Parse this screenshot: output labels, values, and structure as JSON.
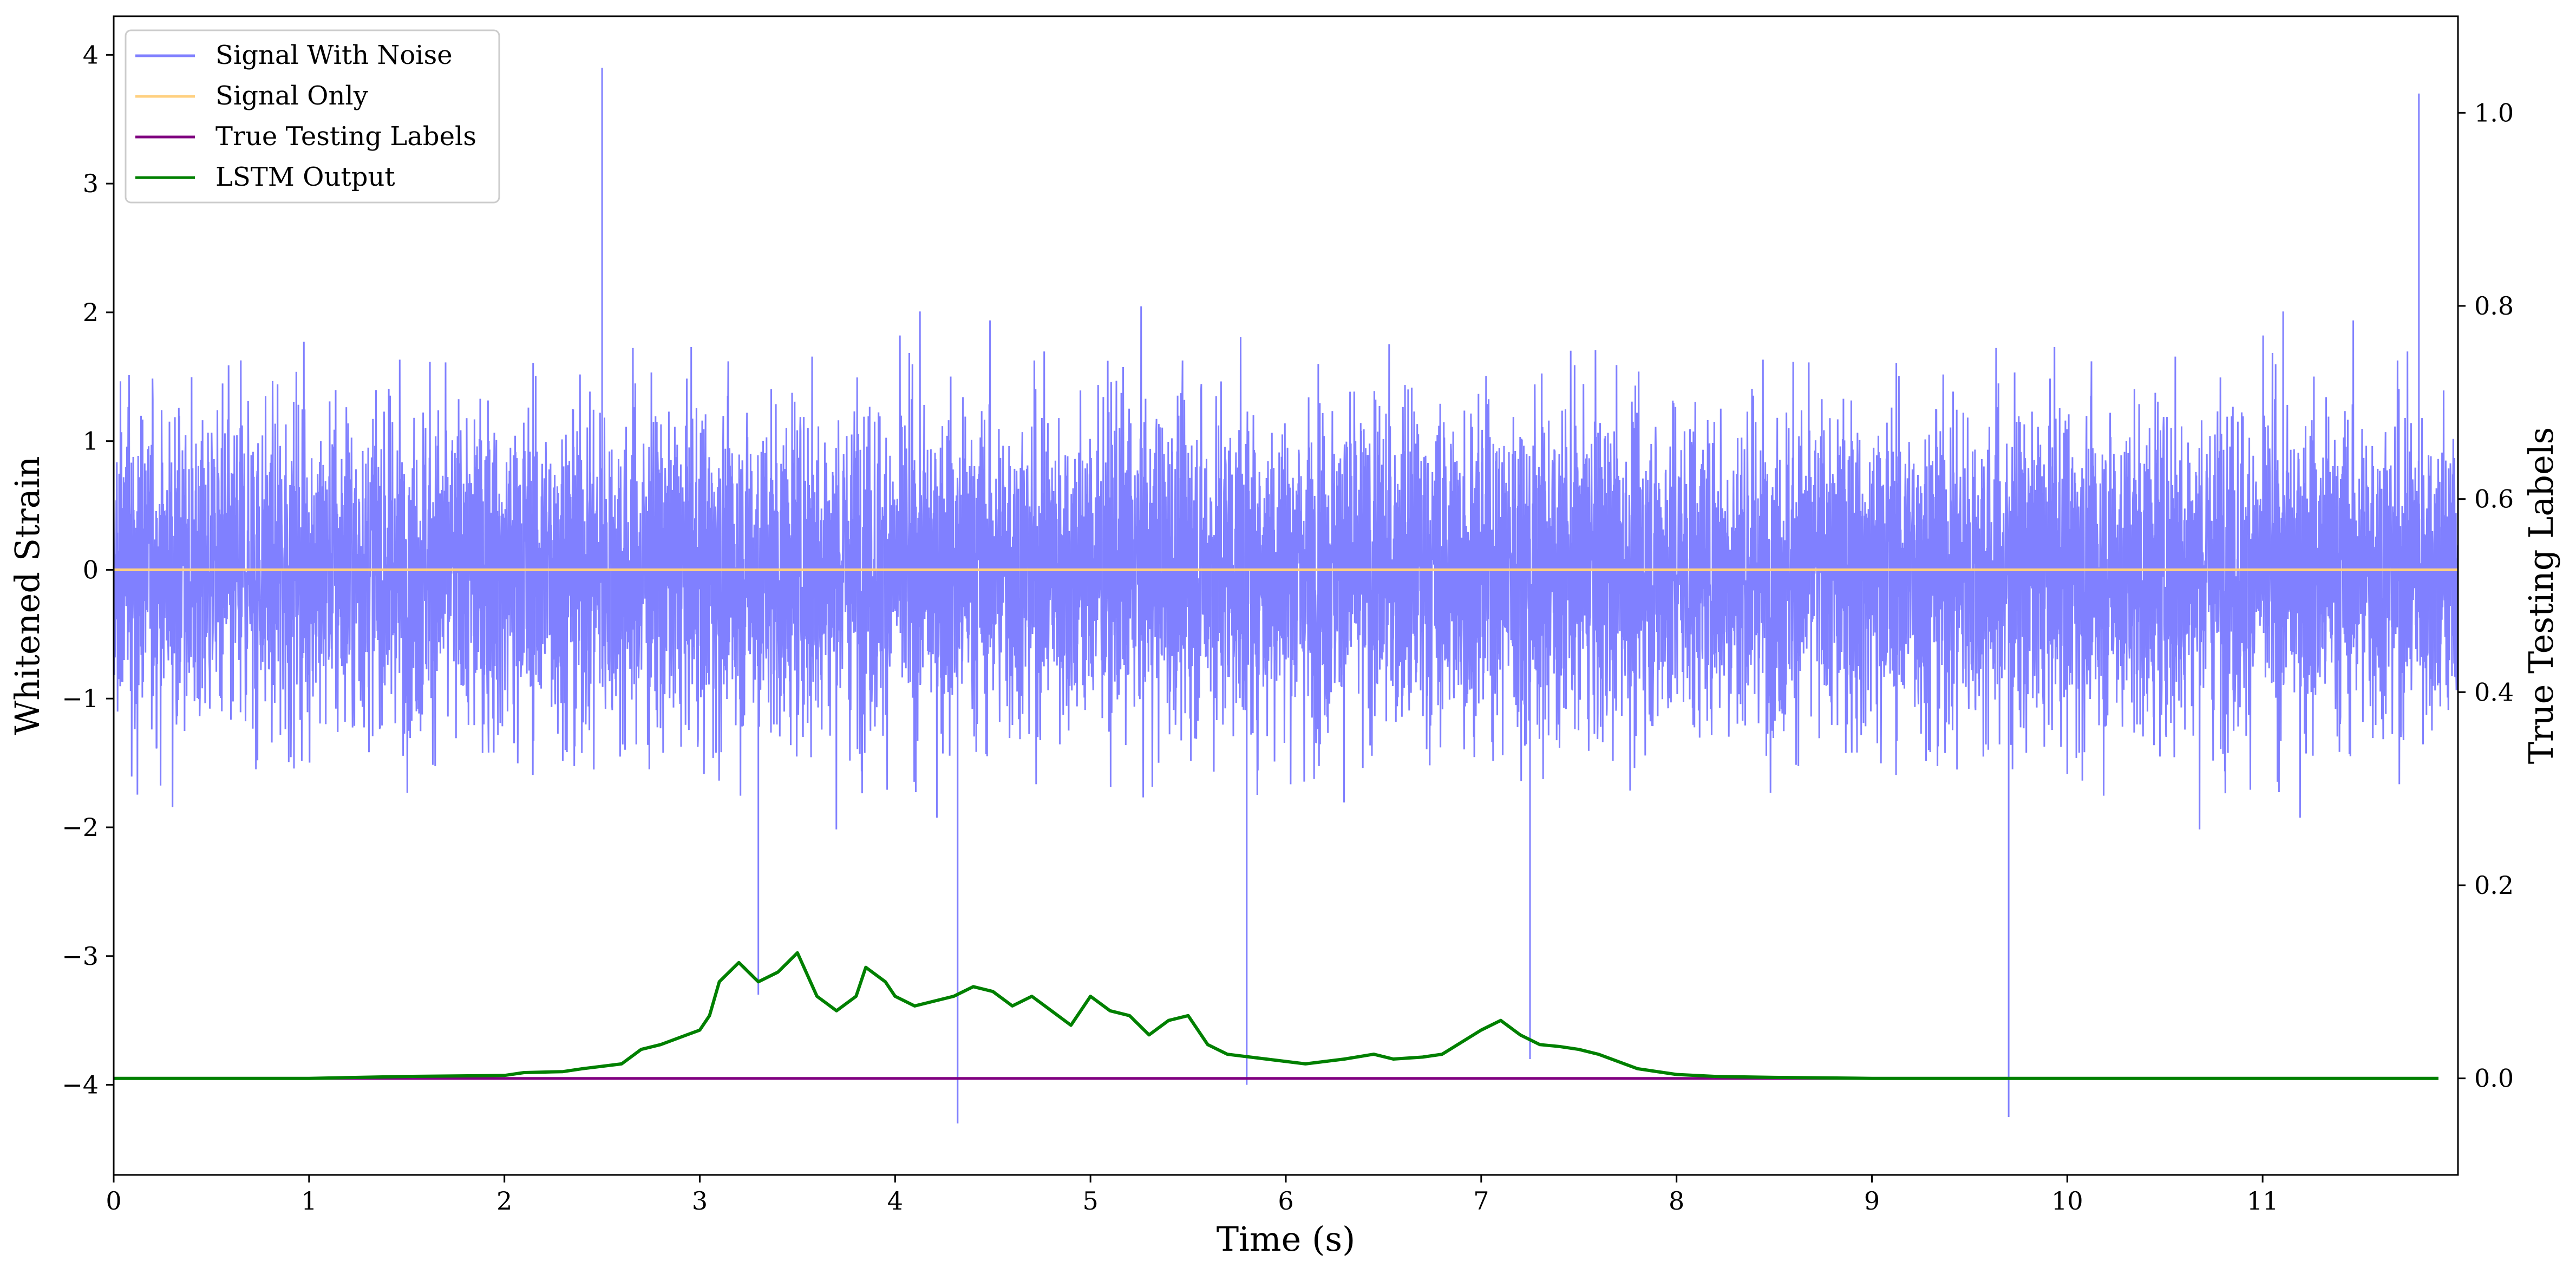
{
  "chart_data": {
    "type": "line",
    "xlabel": "Time (s)",
    "ylabel_left": "Whitened Strain",
    "ylabel_right": "True Testing Labels",
    "xlim": [
      0,
      12
    ],
    "ylim_left": [
      -4.7,
      4.3
    ],
    "ylim_right": [
      -0.1,
      1.1
    ],
    "x_ticks": [
      0,
      1,
      2,
      3,
      4,
      5,
      6,
      7,
      8,
      9,
      10,
      11
    ],
    "y_left_ticks": [
      4,
      3,
      2,
      1,
      0,
      -1,
      -2,
      -3,
      -4
    ],
    "y_right_ticks": [
      1.0,
      0.8,
      0.6,
      0.4,
      0.2,
      0.0
    ],
    "grid": false,
    "legend_position": "upper-left",
    "series": [
      {
        "name": "Signal With Noise",
        "color": "#8080ff",
        "axis": "left",
        "kind": "noise",
        "approx_range": [
          -4.3,
          3.9
        ],
        "spikes": [
          [
            2.5,
            3.9
          ],
          [
            4.32,
            -4.3
          ],
          [
            9.7,
            -4.25
          ],
          [
            11.8,
            3.7
          ],
          [
            3.3,
            -3.3
          ],
          [
            7.25,
            -3.8
          ],
          [
            5.8,
            -4.0
          ]
        ]
      },
      {
        "name": "Signal Only",
        "color": "#ffd080",
        "axis": "left",
        "x": [
          0,
          12
        ],
        "y": [
          0,
          0
        ]
      },
      {
        "name": "True Testing Labels",
        "color": "#800080",
        "axis": "right",
        "x": [
          0,
          11.9
        ],
        "y": [
          0,
          0
        ]
      },
      {
        "name": "LSTM Output",
        "color": "#008000",
        "axis": "right",
        "x": [
          0,
          1.0,
          1.5,
          2.0,
          2.1,
          2.3,
          2.4,
          2.6,
          2.7,
          2.8,
          3.0,
          3.05,
          3.1,
          3.2,
          3.3,
          3.4,
          3.5,
          3.6,
          3.7,
          3.8,
          3.85,
          3.95,
          4.0,
          4.1,
          4.2,
          4.3,
          4.4,
          4.5,
          4.6,
          4.7,
          4.8,
          4.9,
          5.0,
          5.1,
          5.2,
          5.3,
          5.4,
          5.5,
          5.6,
          5.7,
          5.9,
          6.1,
          6.3,
          6.45,
          6.55,
          6.7,
          6.8,
          7.0,
          7.1,
          7.2,
          7.3,
          7.4,
          7.5,
          7.6,
          7.8,
          8.0,
          8.2,
          8.5,
          9.0,
          11.9
        ],
        "y": [
          0.0,
          0.0,
          0.002,
          0.003,
          0.006,
          0.007,
          0.01,
          0.015,
          0.03,
          0.035,
          0.05,
          0.065,
          0.1,
          0.12,
          0.1,
          0.11,
          0.13,
          0.085,
          0.07,
          0.085,
          0.115,
          0.1,
          0.085,
          0.075,
          0.08,
          0.085,
          0.095,
          0.09,
          0.075,
          0.085,
          0.07,
          0.055,
          0.085,
          0.07,
          0.065,
          0.045,
          0.06,
          0.065,
          0.035,
          0.025,
          0.02,
          0.015,
          0.02,
          0.025,
          0.02,
          0.022,
          0.025,
          0.05,
          0.06,
          0.045,
          0.035,
          0.033,
          0.03,
          0.025,
          0.01,
          0.004,
          0.002,
          0.001,
          0.0,
          0.0
        ]
      }
    ]
  }
}
